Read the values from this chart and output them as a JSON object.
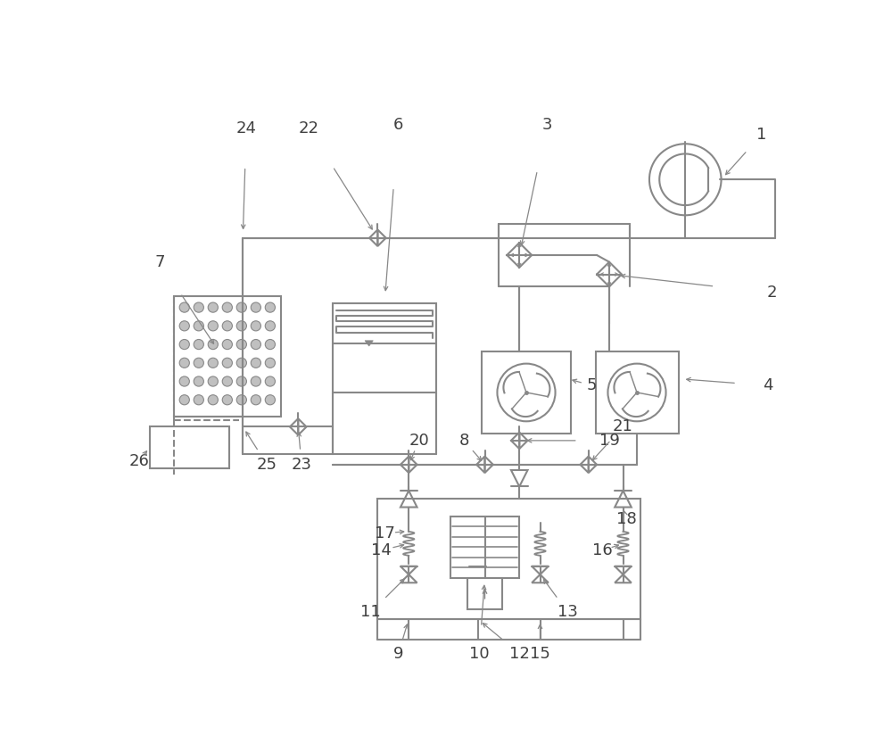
{
  "bg_color": "#ffffff",
  "lc": "#888888",
  "lw": 1.5,
  "tc": "#404040",
  "fs": 13,
  "purple_lc": "#886688"
}
